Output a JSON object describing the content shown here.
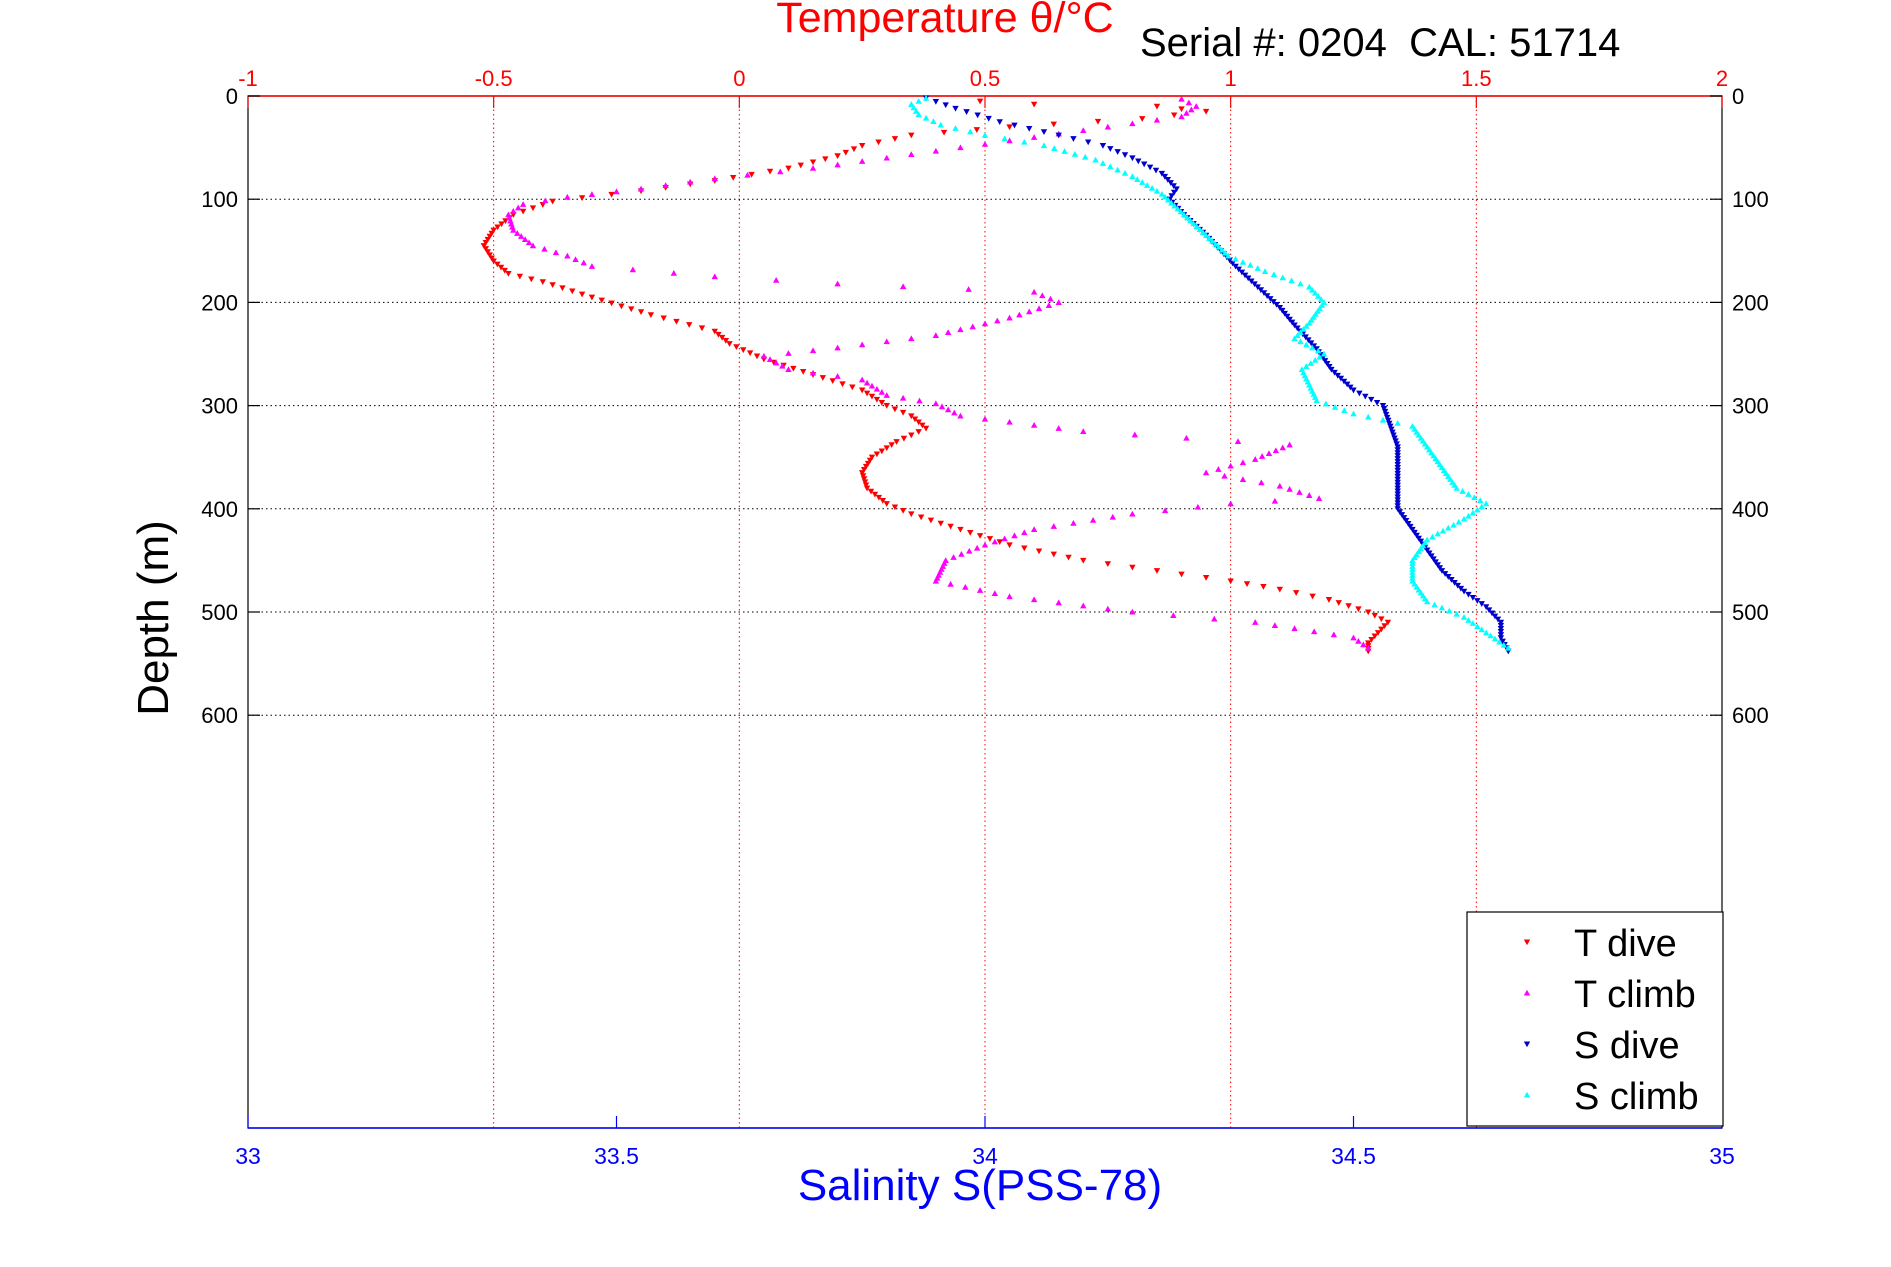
{
  "chart_data": {
    "type": "scatter",
    "title": "Temperature θ/°C",
    "annotation": "Serial #: 0204  CAL: 51714",
    "xlabel_top": "Temperature θ/°C",
    "xlabel_bottom": "Salinity S(PSS-78)",
    "ylabel": "Depth (m)",
    "x_top_range": [
      -1,
      2
    ],
    "x_top_ticks": [
      "-1",
      "-0.5",
      "0",
      "0.5",
      "1",
      "1.5",
      "2"
    ],
    "x_bottom_range": [
      33,
      35
    ],
    "x_bottom_ticks": [
      "33",
      "33.5",
      "34",
      "34.5",
      "35"
    ],
    "y_range": [
      0,
      1000
    ],
    "y_reversed": true,
    "y_ticks": [
      "0",
      "100",
      "200",
      "300",
      "400",
      "500",
      "600"
    ],
    "grid": true,
    "legend_position": "bottom-right",
    "colors": {
      "temperature_axis": "#ff0000",
      "salinity_axis": "#0000ff",
      "t_dive": "#ff0000",
      "t_climb": "#ff00ff",
      "s_dive": "#0000cc",
      "s_climb": "#00ffff"
    },
    "series": [
      {
        "name": "T dive",
        "axis": "temperature",
        "marker": "triangle-down",
        "color": "#ff0000",
        "points": [
          [
            0.38,
            2
          ],
          [
            0.6,
            8
          ],
          [
            0.85,
            10
          ],
          [
            0.95,
            15
          ],
          [
            0.82,
            22
          ],
          [
            0.55,
            30
          ],
          [
            0.35,
            38
          ],
          [
            0.25,
            48
          ],
          [
            0.2,
            58
          ],
          [
            0.1,
            70
          ],
          [
            -0.05,
            82
          ],
          [
            -0.2,
            92
          ],
          [
            -0.38,
            102
          ],
          [
            -0.46,
            115
          ],
          [
            -0.5,
            130
          ],
          [
            -0.52,
            145
          ],
          [
            -0.5,
            160
          ],
          [
            -0.47,
            172
          ],
          [
            -0.4,
            180
          ],
          [
            -0.3,
            195
          ],
          [
            -0.18,
            212
          ],
          [
            -0.05,
            228
          ],
          [
            -0.02,
            240
          ],
          [
            0.05,
            255
          ],
          [
            0.15,
            270
          ],
          [
            0.25,
            285
          ],
          [
            0.3,
            300
          ],
          [
            0.35,
            310
          ],
          [
            0.38,
            322
          ],
          [
            0.32,
            335
          ],
          [
            0.27,
            350
          ],
          [
            0.25,
            365
          ],
          [
            0.26,
            380
          ],
          [
            0.3,
            395
          ],
          [
            0.35,
            405
          ],
          [
            0.45,
            420
          ],
          [
            0.55,
            435
          ],
          [
            0.7,
            450
          ],
          [
            0.85,
            460
          ],
          [
            1.0,
            470
          ],
          [
            1.1,
            478
          ],
          [
            1.2,
            488
          ],
          [
            1.28,
            500
          ],
          [
            1.32,
            510
          ],
          [
            1.3,
            520
          ],
          [
            1.28,
            530
          ],
          [
            1.28,
            538
          ]
        ]
      },
      {
        "name": "T climb",
        "axis": "temperature",
        "marker": "triangle-up",
        "color": "#ff00ff",
        "points": [
          [
            1.28,
            535
          ],
          [
            1.25,
            525
          ],
          [
            1.05,
            510
          ],
          [
            0.8,
            500
          ],
          [
            0.55,
            485
          ],
          [
            0.4,
            470
          ],
          [
            0.42,
            450
          ],
          [
            0.5,
            435
          ],
          [
            0.6,
            420
          ],
          [
            0.8,
            405
          ],
          [
            1.0,
            395
          ],
          [
            1.18,
            390
          ],
          [
            1.1,
            378
          ],
          [
            0.95,
            365
          ],
          [
            1.05,
            352
          ],
          [
            1.12,
            338
          ],
          [
            0.7,
            325
          ],
          [
            0.45,
            310
          ],
          [
            0.4,
            298
          ],
          [
            0.3,
            290
          ],
          [
            0.25,
            275
          ],
          [
            0.1,
            265
          ],
          [
            0.05,
            252
          ],
          [
            0.2,
            244
          ],
          [
            0.4,
            232
          ],
          [
            0.55,
            215
          ],
          [
            0.65,
            200
          ],
          [
            0.6,
            190
          ],
          [
            0.2,
            182
          ],
          [
            -0.05,
            175
          ],
          [
            -0.3,
            165
          ],
          [
            -0.35,
            155
          ],
          [
            -0.42,
            145
          ],
          [
            -0.46,
            130
          ],
          [
            -0.47,
            115
          ],
          [
            -0.44,
            105
          ],
          [
            -0.35,
            98
          ],
          [
            -0.2,
            90
          ],
          [
            -0.05,
            80
          ],
          [
            0.15,
            70
          ],
          [
            0.3,
            60
          ],
          [
            0.45,
            50
          ],
          [
            0.6,
            40
          ],
          [
            0.75,
            30
          ],
          [
            0.9,
            20
          ],
          [
            0.93,
            10
          ],
          [
            0.9,
            3
          ]
        ]
      },
      {
        "name": "S dive",
        "axis": "salinity",
        "marker": "triangle-down",
        "color": "#0000cc",
        "points": [
          [
            33.92,
            2
          ],
          [
            33.96,
            12
          ],
          [
            34.02,
            25
          ],
          [
            34.1,
            38
          ],
          [
            34.16,
            48
          ],
          [
            34.2,
            60
          ],
          [
            34.24,
            75
          ],
          [
            34.26,
            90
          ],
          [
            34.25,
            100
          ],
          [
            34.27,
            115
          ],
          [
            34.3,
            135
          ],
          [
            34.32,
            150
          ],
          [
            34.34,
            165
          ],
          [
            34.37,
            185
          ],
          [
            34.4,
            205
          ],
          [
            34.42,
            222
          ],
          [
            34.45,
            245
          ],
          [
            34.47,
            265
          ],
          [
            34.5,
            285
          ],
          [
            34.54,
            300
          ],
          [
            34.55,
            320
          ],
          [
            34.56,
            340
          ],
          [
            34.56,
            360
          ],
          [
            34.56,
            380
          ],
          [
            34.56,
            400
          ],
          [
            34.58,
            420
          ],
          [
            34.6,
            440
          ],
          [
            34.62,
            460
          ],
          [
            34.65,
            480
          ],
          [
            34.68,
            495
          ],
          [
            34.7,
            510
          ],
          [
            34.7,
            525
          ],
          [
            34.71,
            538
          ]
        ]
      },
      {
        "name": "S climb",
        "axis": "salinity",
        "marker": "triangle-up",
        "color": "#00ffff",
        "points": [
          [
            34.71,
            535
          ],
          [
            34.68,
            520
          ],
          [
            34.65,
            505
          ],
          [
            34.6,
            490
          ],
          [
            34.58,
            470
          ],
          [
            34.58,
            450
          ],
          [
            34.6,
            430
          ],
          [
            34.65,
            410
          ],
          [
            34.68,
            395
          ],
          [
            34.64,
            380
          ],
          [
            34.62,
            360
          ],
          [
            34.6,
            340
          ],
          [
            34.58,
            320
          ],
          [
            34.5,
            308
          ],
          [
            34.45,
            295
          ],
          [
            34.44,
            280
          ],
          [
            34.43,
            265
          ],
          [
            34.46,
            250
          ],
          [
            34.42,
            235
          ],
          [
            34.44,
            220
          ],
          [
            34.46,
            200
          ],
          [
            34.44,
            185
          ],
          [
            34.38,
            170
          ],
          [
            34.33,
            155
          ],
          [
            34.3,
            135
          ],
          [
            34.27,
            115
          ],
          [
            34.24,
            95
          ],
          [
            34.2,
            78
          ],
          [
            34.15,
            62
          ],
          [
            34.08,
            48
          ],
          [
            34.0,
            38
          ],
          [
            33.94,
            28
          ],
          [
            33.91,
            18
          ],
          [
            33.9,
            8
          ],
          [
            33.92,
            2
          ]
        ]
      }
    ]
  }
}
